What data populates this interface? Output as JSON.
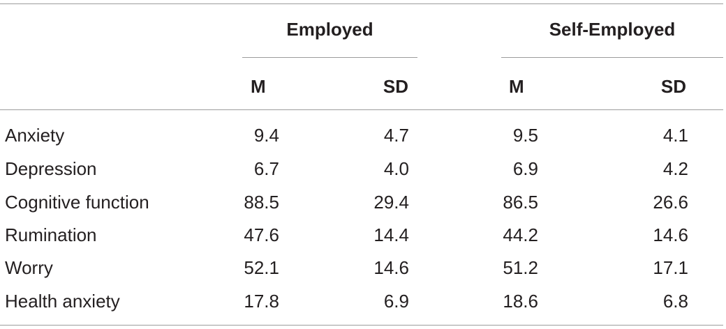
{
  "table": {
    "groups": [
      {
        "label": "Employed"
      },
      {
        "label": "Self-Employed"
      }
    ],
    "columns": [
      "M",
      "SD",
      "M",
      "SD"
    ],
    "rows": [
      {
        "label": "Anxiety",
        "emp_m": "9.4",
        "emp_sd": "4.7",
        "self_m": "9.5",
        "self_sd": "4.1"
      },
      {
        "label": "Depression",
        "emp_m": "6.7",
        "emp_sd": "4.0",
        "self_m": "6.9",
        "self_sd": "4.2"
      },
      {
        "label": "Cognitive function",
        "emp_m": "88.5",
        "emp_sd": "29.4",
        "self_m": "86.5",
        "self_sd": "26.6"
      },
      {
        "label": "Rumination",
        "emp_m": "47.6",
        "emp_sd": "14.4",
        "self_m": "44.2",
        "self_sd": "14.6"
      },
      {
        "label": "Worry",
        "emp_m": "52.1",
        "emp_sd": "14.6",
        "self_m": "51.2",
        "self_sd": "17.1"
      },
      {
        "label": "Health anxiety",
        "emp_m": "17.8",
        "emp_sd": "6.9",
        "self_m": "18.6",
        "self_sd": "6.8"
      }
    ]
  }
}
